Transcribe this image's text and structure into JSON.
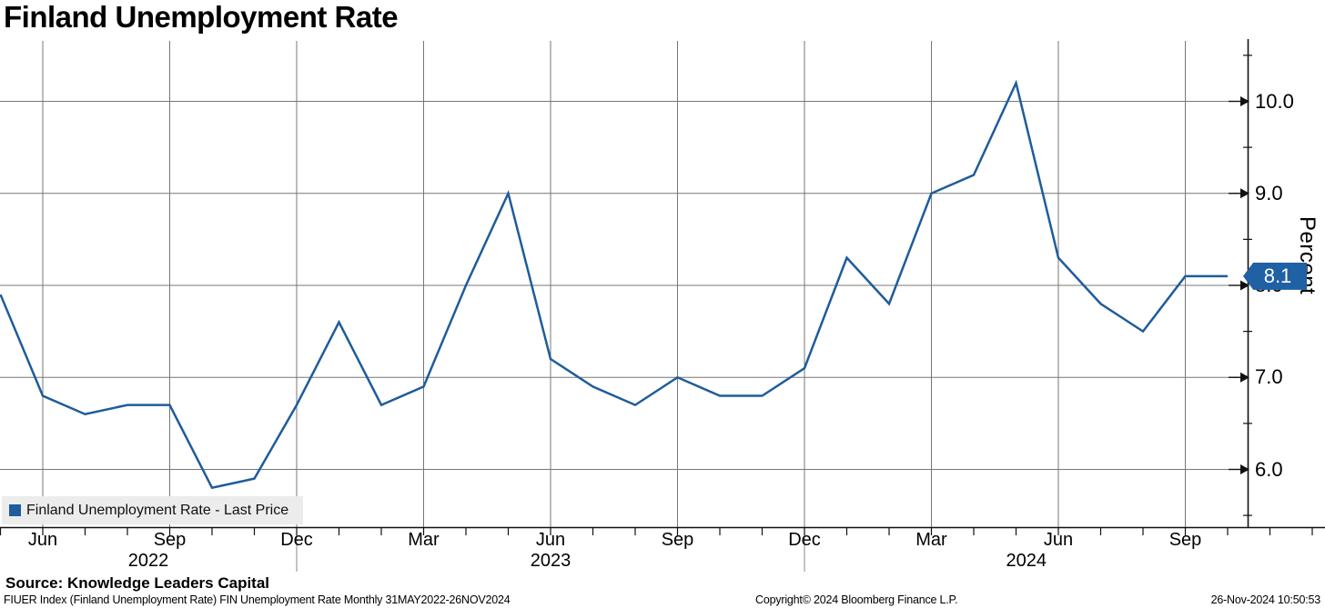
{
  "title": "Finland Unemployment Rate",
  "legend": {
    "label": "Finland Unemployment Rate - Last Price"
  },
  "axis": {
    "y_label": "Percent",
    "last_price_badge": "8.1"
  },
  "footer": {
    "source": "Source: Knowledge Leaders Capital",
    "ticker_info": "FIUER Index (Finland Unemployment Rate) FIN Unemployment Rate  Monthly 31MAY2022-26NOV2024",
    "copyright": "Copyright© 2024 Bloomberg Finance L.P.",
    "timestamp": "26-Nov-2024 10:50:53"
  },
  "chart_data": {
    "type": "line",
    "title": "Finland Unemployment Rate",
    "series_name": "Finland Unemployment Rate - Last Price",
    "ylabel": "Percent",
    "x": [
      "May 2022",
      "Jun 2022",
      "Jul 2022",
      "Aug 2022",
      "Sep 2022",
      "Oct 2022",
      "Nov 2022",
      "Dec 2022",
      "Jan 2023",
      "Feb 2023",
      "Mar 2023",
      "Apr 2023",
      "May 2023",
      "Jun 2023",
      "Jul 2023",
      "Aug 2023",
      "Sep 2023",
      "Oct 2023",
      "Nov 2023",
      "Dec 2023",
      "Jan 2024",
      "Feb 2024",
      "Mar 2024",
      "Apr 2024",
      "May 2024",
      "Jun 2024",
      "Jul 2024",
      "Aug 2024",
      "Sep 2024",
      "Oct 2024"
    ],
    "values": [
      7.9,
      6.8,
      6.6,
      6.7,
      6.7,
      5.8,
      5.9,
      6.7,
      7.6,
      6.7,
      6.9,
      8.0,
      9.0,
      7.2,
      6.9,
      6.7,
      7.0,
      6.8,
      6.8,
      7.1,
      8.3,
      7.8,
      9.0,
      9.2,
      10.2,
      8.3,
      7.8,
      7.5,
      8.1,
      8.1
    ],
    "last_price": 8.1,
    "ylim": [
      5.4,
      10.65
    ],
    "y_major_ticks": [
      6.0,
      7.0,
      8.0,
      9.0,
      10.0
    ],
    "y_minor_ticks": [
      5.5,
      6.5,
      7.5,
      8.5,
      9.5,
      10.5
    ],
    "x_quarter_ticks": [
      {
        "index": 1,
        "label": "Jun"
      },
      {
        "index": 4,
        "label": "Sep"
      },
      {
        "index": 7,
        "label": "Dec"
      },
      {
        "index": 10,
        "label": "Mar"
      },
      {
        "index": 13,
        "label": "Jun"
      },
      {
        "index": 16,
        "label": "Sep"
      },
      {
        "index": 19,
        "label": "Dec"
      },
      {
        "index": 22,
        "label": "Mar"
      },
      {
        "index": 25,
        "label": "Jun"
      },
      {
        "index": 28,
        "label": "Sep"
      }
    ],
    "year_separator_indices": [
      7,
      19
    ],
    "year_labels": [
      "2022",
      "2023",
      "2024"
    ],
    "grid": true,
    "legend_position": "bottom-left",
    "line_color": "#1f5c9b",
    "badge_color": "#2060a5",
    "grid_color": "#777777"
  }
}
